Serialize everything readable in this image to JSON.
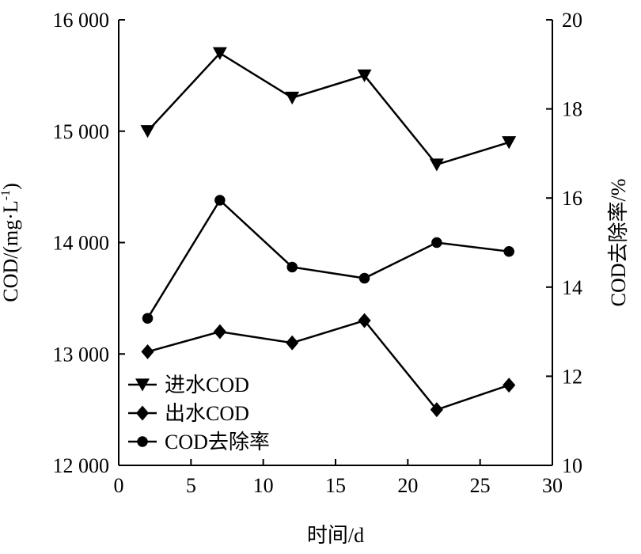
{
  "chart_data": {
    "type": "line",
    "x_axis": {
      "label": "时间/d",
      "range": [
        0,
        30
      ],
      "ticks": [
        0,
        5,
        10,
        15,
        20,
        25,
        30
      ],
      "tick_labels": [
        "0",
        "5",
        "10",
        "15",
        "20",
        "25",
        "30"
      ]
    },
    "y_left": {
      "label": "COD/(mg·L",
      "label_sup": "-1",
      "label_end": ")",
      "range": [
        12000,
        16000
      ],
      "ticks": [
        12000,
        13000,
        14000,
        15000,
        16000
      ],
      "tick_labels": [
        "12 000",
        "13 000",
        "14 000",
        "15 000",
        "16 000"
      ]
    },
    "y_right": {
      "label": "COD去除率/%",
      "range": [
        10,
        20
      ],
      "ticks": [
        10,
        12,
        14,
        16,
        18,
        20
      ],
      "tick_labels": [
        "10",
        "12",
        "14",
        "16",
        "18",
        "20"
      ]
    },
    "x": [
      2,
      7,
      12,
      17,
      22,
      27
    ],
    "series": [
      {
        "name": "进水COD",
        "axis": "left",
        "marker": "triangle-down",
        "values": [
          15000,
          15700,
          15300,
          15500,
          14700,
          14900
        ]
      },
      {
        "name": "出水COD",
        "axis": "left",
        "marker": "diamond",
        "values": [
          13020,
          13200,
          13100,
          13300,
          12500,
          12720
        ]
      },
      {
        "name": "COD去除率",
        "axis": "right",
        "marker": "circle",
        "values": [
          13.3,
          15.95,
          14.45,
          14.2,
          15.0,
          14.8
        ]
      }
    ],
    "legend": {
      "placement": "bottom-left"
    },
    "grid": false,
    "colors": {
      "line": "#000000",
      "background": "#ffffff"
    }
  }
}
